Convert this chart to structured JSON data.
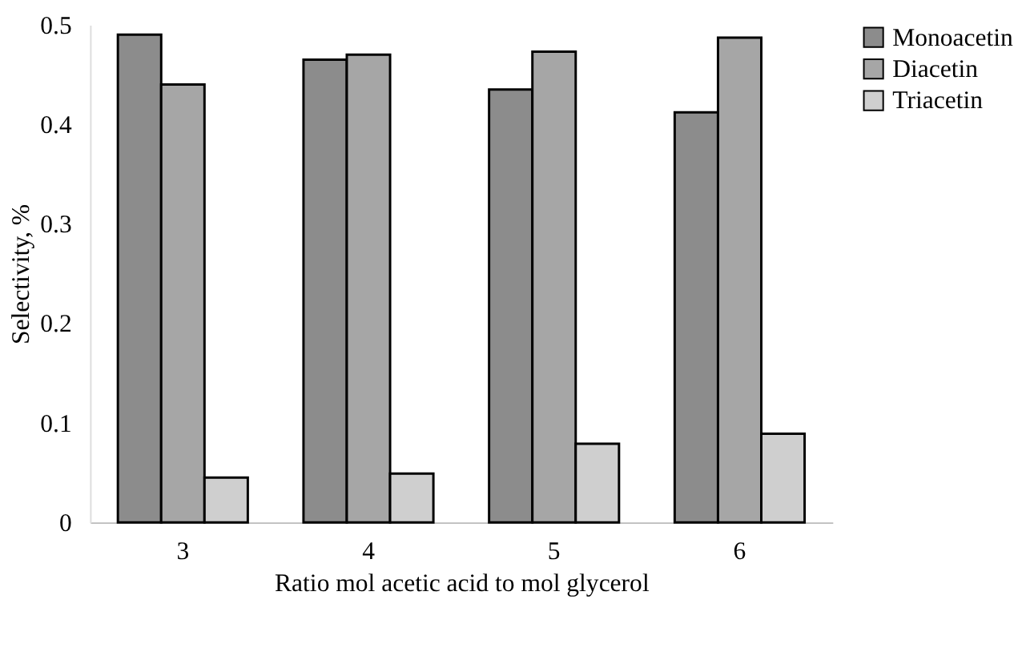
{
  "chart_data": {
    "type": "bar",
    "xlabel": "Ratio mol acetic acid to mol glycerol",
    "ylabel": "Selectivity, %",
    "categories": [
      "3",
      "4",
      "5",
      "6"
    ],
    "series": [
      {
        "name": "Monoacetin",
        "color": "#8c8c8c",
        "values": [
          0.49,
          0.465,
          0.435,
          0.412
        ]
      },
      {
        "name": "Diacetin",
        "color": "#a6a6a6",
        "values": [
          0.44,
          0.47,
          0.473,
          0.487
        ]
      },
      {
        "name": "Triacetin",
        "color": "#cfcfcf",
        "values": [
          0.045,
          0.049,
          0.079,
          0.089
        ]
      }
    ],
    "ylim": [
      0,
      0.5
    ],
    "yticks": [
      0,
      0.1,
      0.2,
      0.3,
      0.4,
      0.5
    ],
    "grid": false,
    "legend": "right"
  }
}
